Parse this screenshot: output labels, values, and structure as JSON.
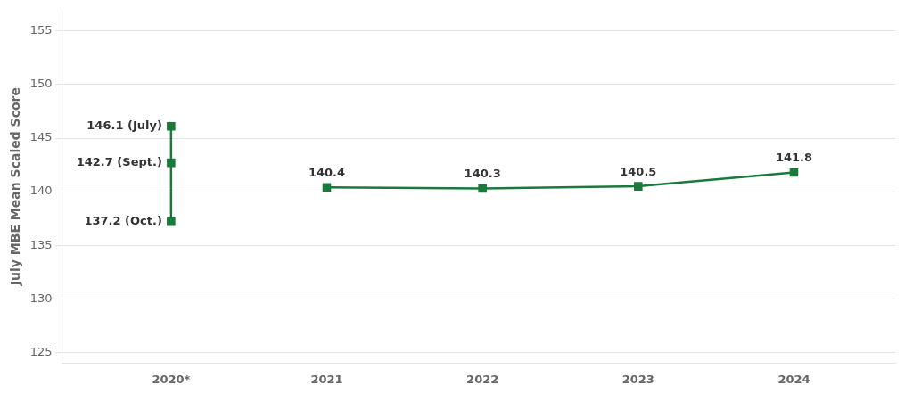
{
  "chart_data": {
    "type": "line",
    "ylabel": "July MBE Mean Scaled Score",
    "xlim": [
      2019.3,
      2024.65
    ],
    "xticks": [
      {
        "value": 2020,
        "label": "2020*"
      },
      2021,
      2022,
      2023,
      2024
    ],
    "ylim": [
      124,
      157
    ],
    "yticks": [
      125,
      130,
      135,
      140,
      145,
      150,
      155
    ],
    "grid": "y",
    "marker": "square",
    "line_style": "solid",
    "color": "#1a7a3c",
    "data_labels": true,
    "series": [
      {
        "x": [
          2021,
          2022,
          2023,
          2024
        ],
        "values": [
          140.4,
          140.3,
          140.5,
          141.8
        ]
      },
      {
        "x": [
          2020,
          2020,
          2020
        ],
        "values": [
          146.1,
          142.7,
          137.2
        ],
        "value_labels": [
          "146.1 (July)",
          "142.7 (Sept.)",
          "137.2 (Oct.)"
        ]
      }
    ]
  }
}
